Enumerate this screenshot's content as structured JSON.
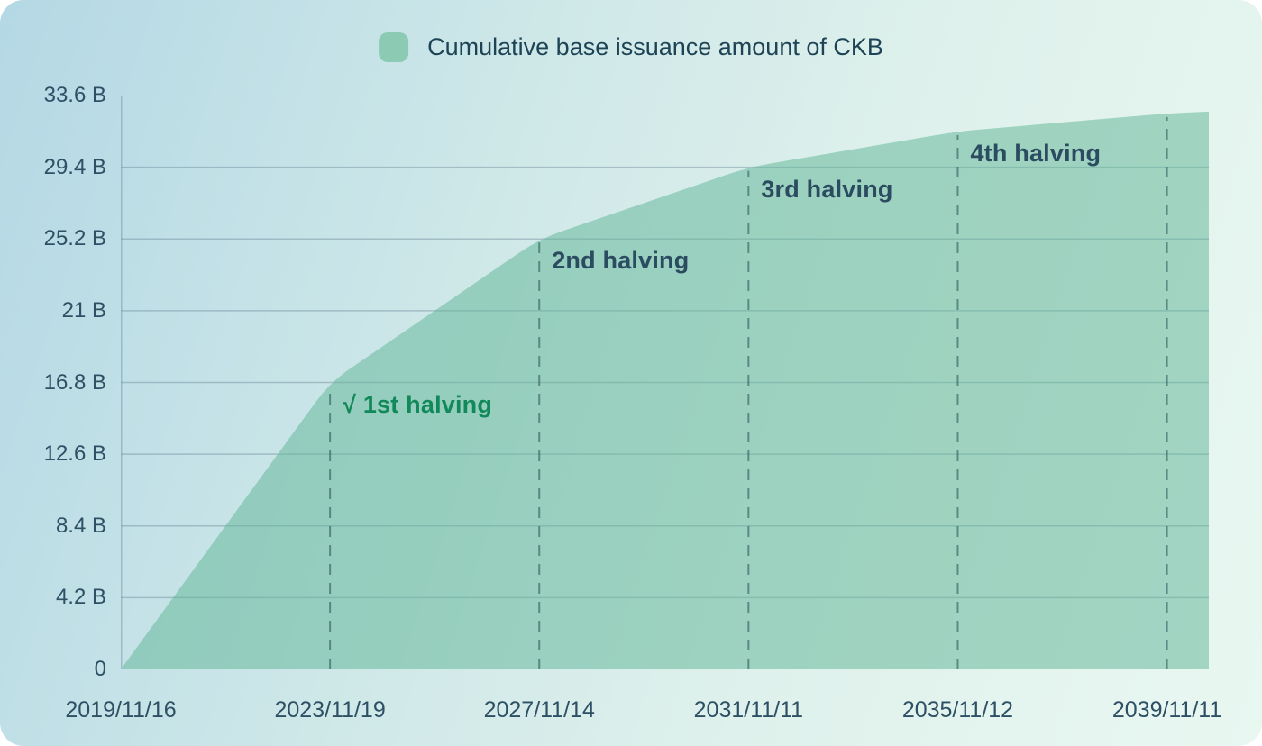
{
  "legend": {
    "swatch_color": "#8ccab3"
  },
  "colors": {
    "card_gradient": [
      "#b4d8e5",
      "#cde7e8",
      "#e9f7f1"
    ],
    "grid_line": "rgba(110,140,155,0.45)",
    "dashed_line": "rgba(45,90,90,0.6)",
    "area_fill": "rgba(97,182,151,0.52)",
    "axis_text": "#2e5065",
    "legend_text": "#1d4355",
    "annotation_slate": "#2b4b61",
    "annotation_green": "#11895a",
    "legend_swatch": "#8ccab3"
  },
  "chart_data": {
    "type": "area",
    "title": "Cumulative base issuance amount of CKB",
    "grid": "horizontal",
    "legend_position": "top-center",
    "x_tick_labels": [
      "2019/11/16",
      "2023/11/19",
      "2027/11/14",
      "2031/11/11",
      "2035/11/12",
      "2039/11/11"
    ],
    "x_unit": "halving-period ticks (1 tick = 4 years)",
    "xlim": [
      0,
      5.2
    ],
    "y_tick_labels": [
      "0",
      "4.2 B",
      "8.4 B",
      "12.6 B",
      "16.8 B",
      "21 B",
      "25.2 B",
      "29.4 B",
      "33.6 B"
    ],
    "y_tick_values": [
      0,
      4.2,
      8.4,
      12.6,
      16.8,
      21,
      25.2,
      29.4,
      33.6
    ],
    "ylim": [
      0,
      33.6
    ],
    "series": [
      {
        "name": "Cumulative base issuance amount of CKB",
        "x": [
          0,
          1,
          2,
          3,
          4,
          5,
          5.2
        ],
        "values": [
          0,
          16.8,
          25.2,
          29.4,
          31.5,
          32.55,
          32.66
        ]
      }
    ],
    "markers": [
      {
        "x": 1,
        "value": 16.8,
        "label": "√ 1st halving",
        "color": "#11895a"
      },
      {
        "x": 2,
        "value": 25.2,
        "label": "2nd halving",
        "color": "#2b4b61"
      },
      {
        "x": 3,
        "value": 29.4,
        "label": "3rd halving",
        "color": "#2b4b61"
      },
      {
        "x": 4,
        "value": 31.5,
        "label": "4th halving",
        "color": "#2b4b61"
      },
      {
        "x": 5,
        "value": 32.55,
        "label": "",
        "color": ""
      }
    ]
  }
}
